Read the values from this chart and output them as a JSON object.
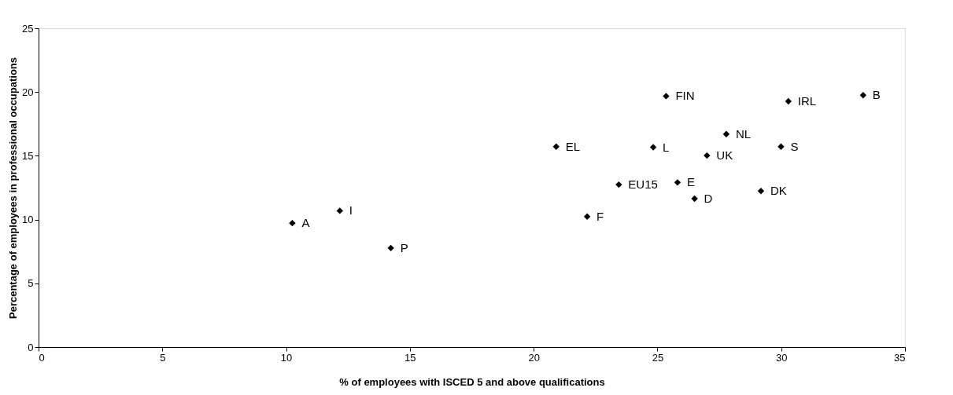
{
  "chart_data": {
    "type": "scatter",
    "xlabel": "% of employees with ISCED 5 and above qualifications",
    "ylabel": "Percentage of employees in professional occupations",
    "x": [
      10.25,
      12.17,
      14.23,
      20.91,
      22.16,
      23.44,
      24.83,
      25.35,
      25.81,
      26.5,
      27.0,
      27.78,
      29.18,
      29.99,
      30.29,
      33.31
    ],
    "series": [
      {
        "color": "#000000",
        "values": [
          9.72,
          10.69,
          7.77,
          15.72,
          10.24,
          12.74,
          15.67,
          19.68,
          12.91,
          11.64,
          15.02,
          16.7,
          12.24,
          15.72,
          19.27,
          19.75
        ]
      }
    ],
    "annotations": [
      {
        "text": "A",
        "x": 10.25,
        "y": 9.72
      },
      {
        "text": "I",
        "x": 12.17,
        "y": 10.69
      },
      {
        "text": "P",
        "x": 14.23,
        "y": 7.77
      },
      {
        "text": "EL",
        "x": 20.91,
        "y": 15.72
      },
      {
        "text": "F",
        "x": 22.16,
        "y": 10.24
      },
      {
        "text": "EU15",
        "x": 23.44,
        "y": 12.74
      },
      {
        "text": "L",
        "x": 24.83,
        "y": 15.67
      },
      {
        "text": "FIN",
        "x": 25.35,
        "y": 19.68
      },
      {
        "text": "E",
        "x": 25.81,
        "y": 12.91
      },
      {
        "text": "D",
        "x": 26.5,
        "y": 11.64
      },
      {
        "text": "UK",
        "x": 27.0,
        "y": 15.02
      },
      {
        "text": "NL",
        "x": 27.78,
        "y": 16.7
      },
      {
        "text": "DK",
        "x": 29.18,
        "y": 12.24
      },
      {
        "text": "S",
        "x": 29.99,
        "y": 15.72
      },
      {
        "text": "IRL",
        "x": 30.29,
        "y": 19.27
      },
      {
        "text": "B",
        "x": 33.31,
        "y": 19.75
      }
    ],
    "xlim": [
      0,
      35
    ],
    "xticks": [
      0,
      5,
      10,
      15,
      20,
      25,
      30,
      35
    ],
    "ylim": [
      0,
      25
    ],
    "yticks": [
      0,
      5,
      10,
      15,
      20,
      25
    ],
    "marker": "diamond",
    "grid": false,
    "legend": false
  }
}
